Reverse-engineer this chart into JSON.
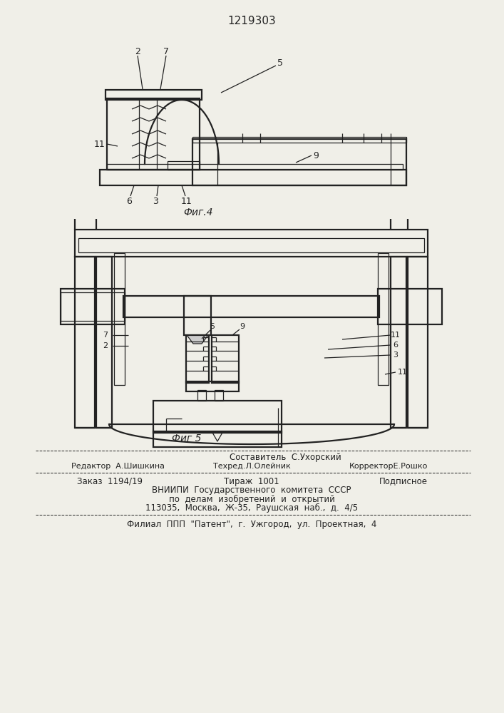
{
  "patent_number": "1219303",
  "fig4_label": "Фиг.4",
  "fig5_label": "Фиг 5",
  "footer_line1": "Составитель  С.Ухорский",
  "footer_line2_left": "Редактор  А.Шишкина",
  "footer_line2_mid": "Техред.Л.Олейник",
  "footer_line2_right": "КорректорЕ.Рошко",
  "footer_line3_left": "Заказ  1194/19",
  "footer_line3_mid": "Тираж  1001",
  "footer_line3_right": "Подписное",
  "footer_line4": "ВНИИПИ  Государственного  комитета  СССР",
  "footer_line5": "по  делам  изобретений  и  открытий",
  "footer_line6": "113035,  Москва,  Ж-35,  Раушская  наб.,  д.  4/5",
  "footer_line7": "Филиал  ППП  \"Патент\",  г.  Ужгород,  ул.  Проектная,  4",
  "line_color": "#222222",
  "bg_color": "#f0efe8"
}
